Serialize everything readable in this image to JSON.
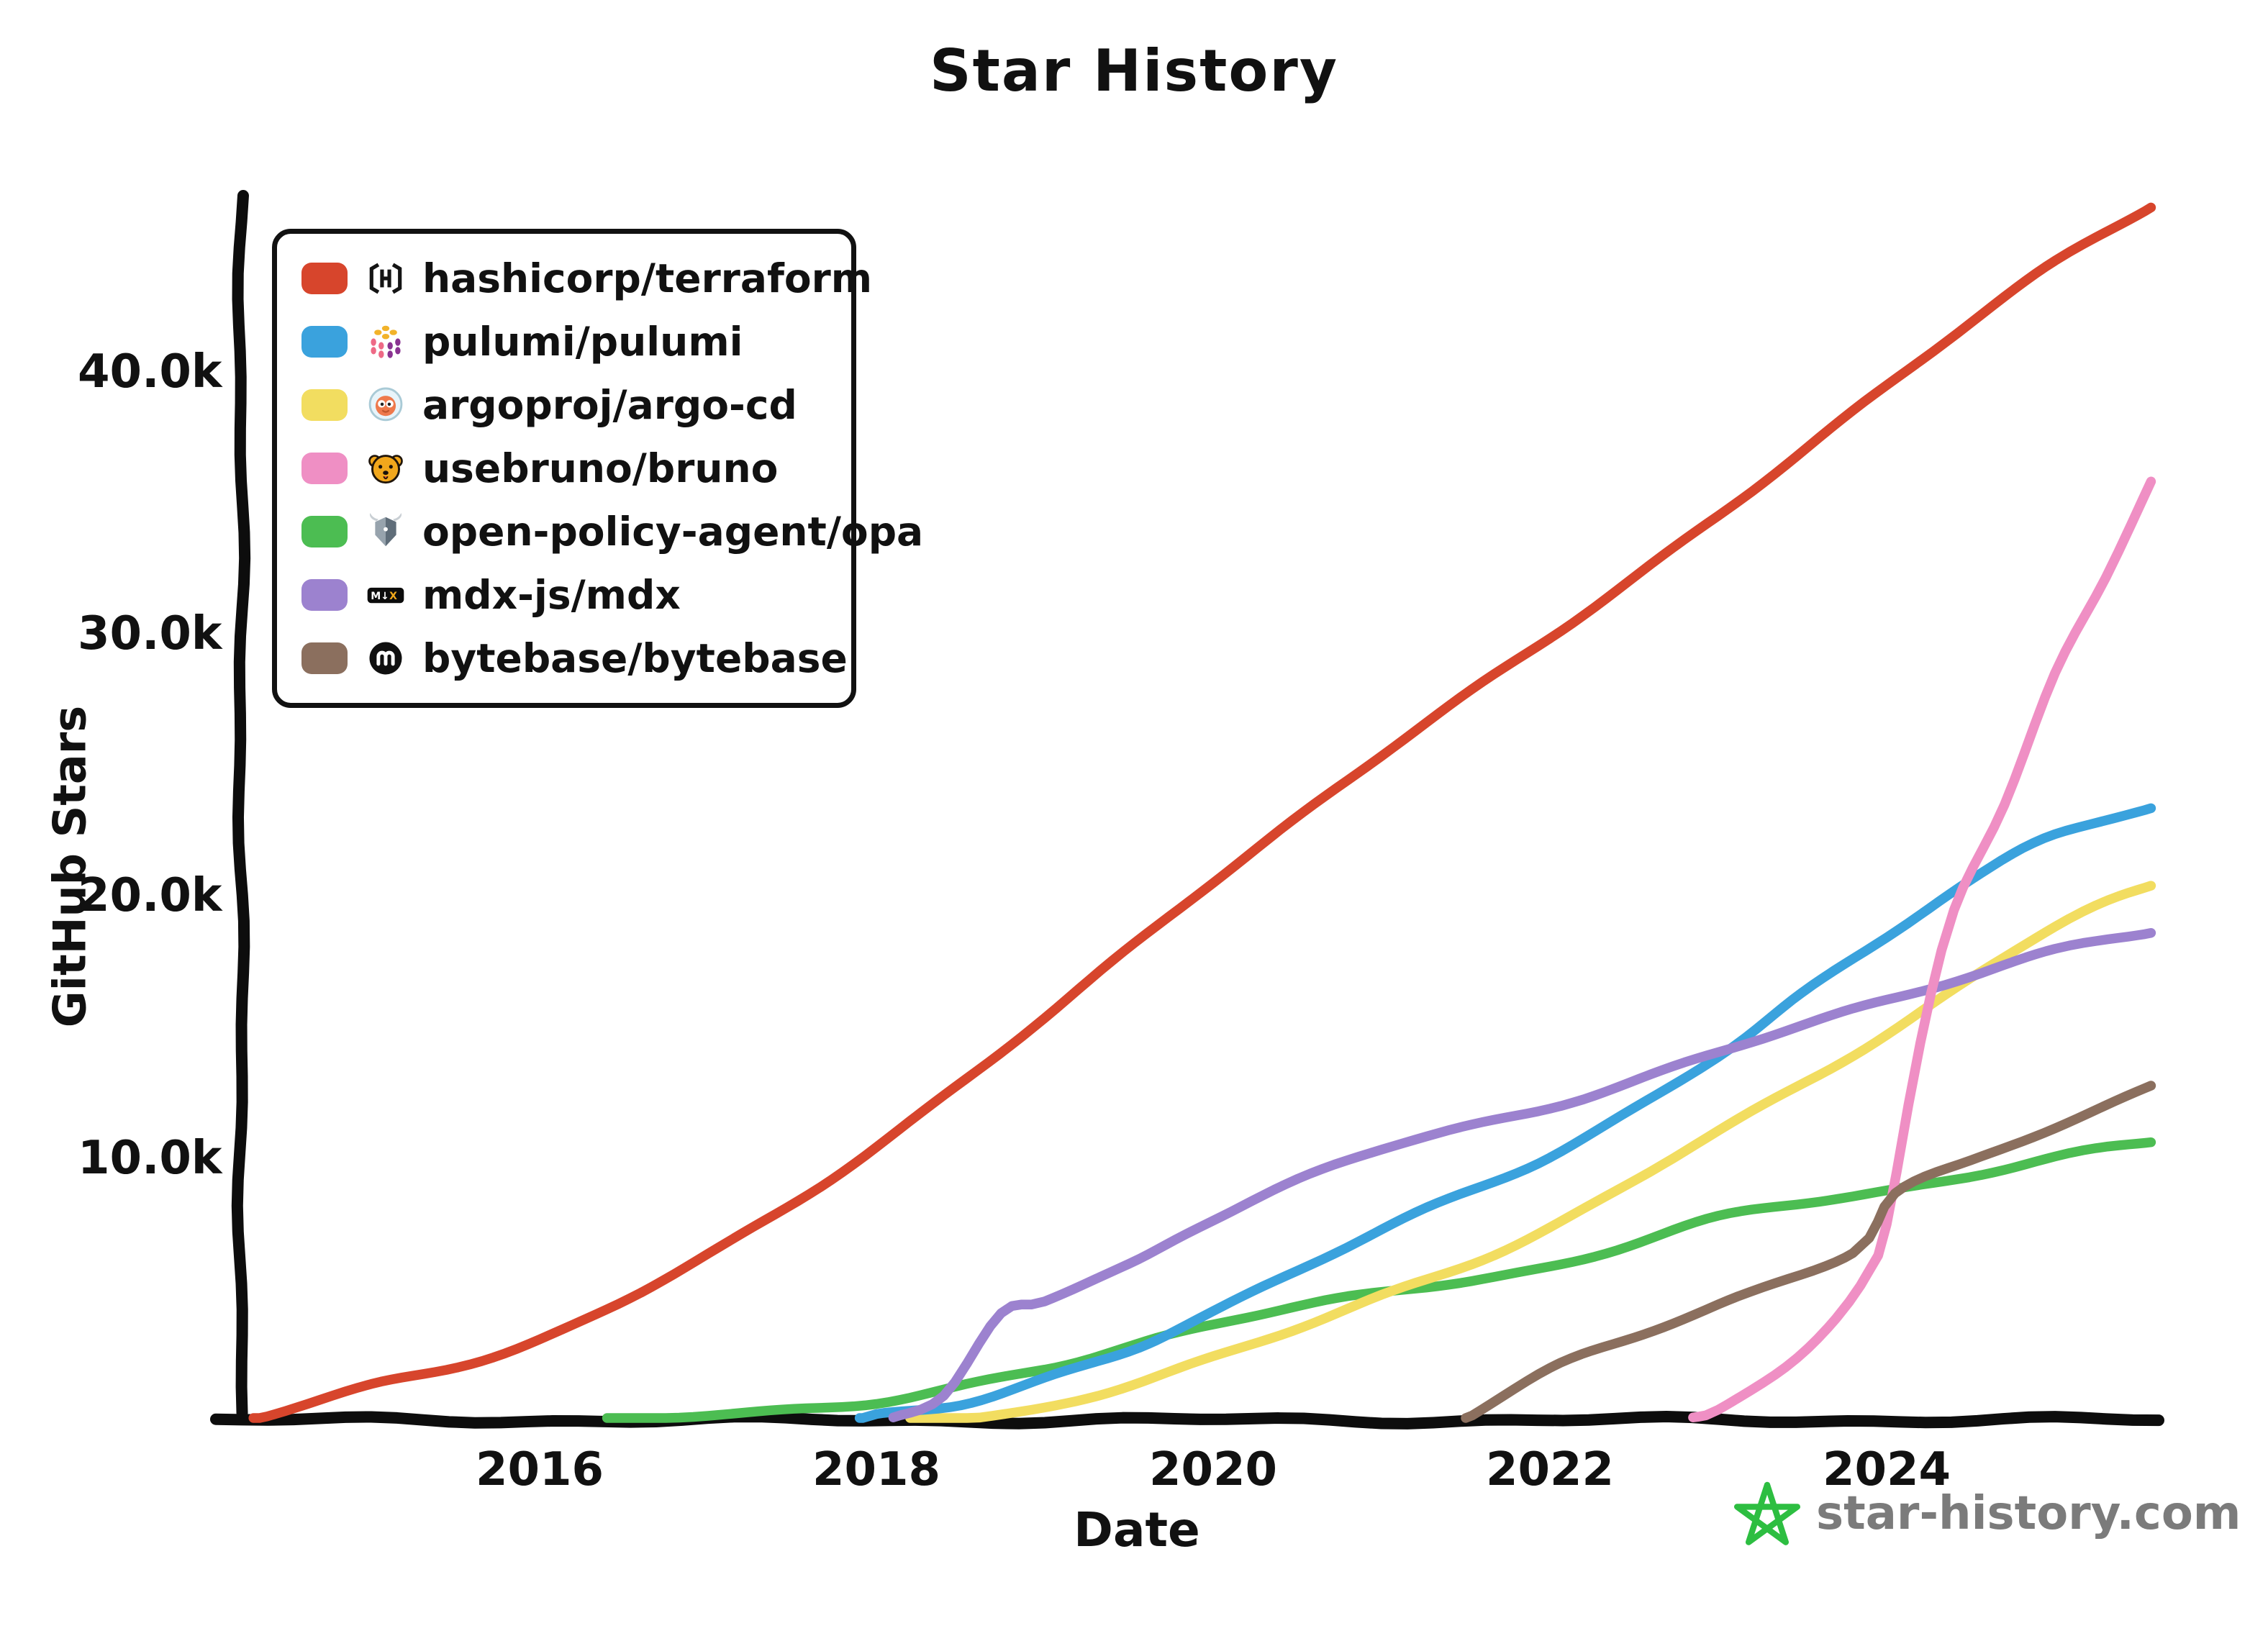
{
  "title": "Star History",
  "axes": {
    "x": {
      "label": "Date",
      "min_year": 2014.23,
      "max_year": 2025.57,
      "ticks": [
        {
          "label": "2016",
          "year": 2016
        },
        {
          "label": "2018",
          "year": 2018
        },
        {
          "label": "2020",
          "year": 2020
        },
        {
          "label": "2022",
          "year": 2022
        },
        {
          "label": "2024",
          "year": 2024
        }
      ]
    },
    "y": {
      "label": "GitHub Stars",
      "min": 0,
      "max": 46500,
      "ticks": [
        {
          "label": "10.0k",
          "value": 10000
        },
        {
          "label": "20.0k",
          "value": 20000
        },
        {
          "label": "30.0k",
          "value": 30000
        },
        {
          "label": "40.0k",
          "value": 40000
        }
      ]
    }
  },
  "legend": [
    {
      "label": "hashicorp/terraform",
      "color": "#d7452c",
      "icon": "terraform-logo-icon"
    },
    {
      "label": "pulumi/pulumi",
      "color": "#3aa2dd",
      "icon": "pulumi-logo-icon"
    },
    {
      "label": "argoproj/argo-cd",
      "color": "#f2dd60",
      "icon": "argocd-logo-icon"
    },
    {
      "label": "usebruno/bruno",
      "color": "#ef8fc4",
      "icon": "bruno-logo-icon"
    },
    {
      "label": "open-policy-agent/opa",
      "color": "#4cbd52",
      "icon": "opa-logo-icon"
    },
    {
      "label": "mdx-js/mdx",
      "color": "#9c82cf",
      "icon": "mdx-logo-icon"
    },
    {
      "label": "bytebase/bytebase",
      "color": "#8b6f5e",
      "icon": "bytebase-logo-icon"
    }
  ],
  "watermark": {
    "text": "star-history.com",
    "text_color": "#7b7b7b",
    "star_color": "#2dbe41",
    "icon": "star-history-logo-icon"
  },
  "chart_data": {
    "type": "line",
    "title": "Star History",
    "xlabel": "Date",
    "ylabel": "GitHub Stars",
    "x_unit": "decimal_year",
    "xlim": [
      2014.23,
      2025.57
    ],
    "ylim": [
      0,
      46500
    ],
    "grid": false,
    "legend_position": "top-left",
    "series": [
      {
        "name": "hashicorp/terraform",
        "color": "#d7452c",
        "points": [
          [
            2014.3,
            0
          ],
          [
            2015,
            1400
          ],
          [
            2016,
            3000
          ],
          [
            2017,
            6300
          ],
          [
            2018,
            10500
          ],
          [
            2019,
            15300
          ],
          [
            2020,
            20600
          ],
          [
            2021,
            25400
          ],
          [
            2022,
            29800
          ],
          [
            2023,
            34600
          ],
          [
            2024,
            39400
          ],
          [
            2025,
            44200
          ],
          [
            2025.57,
            46400
          ]
        ]
      },
      {
        "name": "open-policy-agent/opa",
        "color": "#4cbd52",
        "points": [
          [
            2016.4,
            0
          ],
          [
            2017,
            300
          ],
          [
            2018,
            600
          ],
          [
            2019,
            2000
          ],
          [
            2020,
            3700
          ],
          [
            2021,
            4800
          ],
          [
            2022,
            5900
          ],
          [
            2023,
            7700
          ],
          [
            2024,
            8700
          ],
          [
            2025,
            10100
          ],
          [
            2025.57,
            10600
          ]
        ]
      },
      {
        "name": "argoproj/argo-cd",
        "color": "#f2dd60",
        "points": [
          [
            2018.2,
            0
          ],
          [
            2019,
            500
          ],
          [
            2020,
            2300
          ],
          [
            2021,
            4800
          ],
          [
            2022,
            7300
          ],
          [
            2023,
            11000
          ],
          [
            2024,
            14800
          ],
          [
            2025,
            18800
          ],
          [
            2025.57,
            20300
          ]
        ]
      },
      {
        "name": "pulumi/pulumi",
        "color": "#3aa2dd",
        "points": [
          [
            2017.9,
            0
          ],
          [
            2018,
            250
          ],
          [
            2018.5,
            600
          ],
          [
            2019,
            1500
          ],
          [
            2019.5,
            2600
          ],
          [
            2020,
            4200
          ],
          [
            2021,
            7300
          ],
          [
            2022,
            10000
          ],
          [
            2023,
            14000
          ],
          [
            2023.5,
            16300
          ],
          [
            2024,
            18400
          ],
          [
            2024.5,
            20500
          ],
          [
            2025,
            22400
          ],
          [
            2025.57,
            23400
          ]
        ]
      },
      {
        "name": "mdx-js/mdx",
        "color": "#9c82cf",
        "points": [
          [
            2018.1,
            0
          ],
          [
            2018.4,
            800
          ],
          [
            2018.74,
            4100
          ],
          [
            2019,
            4600
          ],
          [
            2019.5,
            6000
          ],
          [
            2020,
            7700
          ],
          [
            2021,
            10300
          ],
          [
            2022,
            12000
          ],
          [
            2023,
            14000
          ],
          [
            2024,
            16000
          ],
          [
            2025,
            18000
          ],
          [
            2025.57,
            18600
          ]
        ]
      },
      {
        "name": "usebruno/bruno",
        "color": "#ef8fc4",
        "points": [
          [
            2022.85,
            0
          ],
          [
            2023,
            300
          ],
          [
            2023.4,
            2100
          ],
          [
            2023.7,
            4000
          ],
          [
            2023.9,
            5800
          ],
          [
            2024,
            7500
          ],
          [
            2024.2,
            14400
          ],
          [
            2024.4,
            19500
          ],
          [
            2024.7,
            23500
          ],
          [
            2025,
            28400
          ],
          [
            2025.3,
            32000
          ],
          [
            2025.57,
            35800
          ]
        ]
      },
      {
        "name": "bytebase/bytebase",
        "color": "#8b6f5e",
        "points": [
          [
            2021.5,
            0
          ],
          [
            2022,
            1900
          ],
          [
            2022.5,
            3200
          ],
          [
            2023,
            4500
          ],
          [
            2023.8,
            6400
          ],
          [
            2024.05,
            8600
          ],
          [
            2024.5,
            9800
          ],
          [
            2025,
            11200
          ],
          [
            2025.57,
            12800
          ]
        ]
      }
    ]
  }
}
